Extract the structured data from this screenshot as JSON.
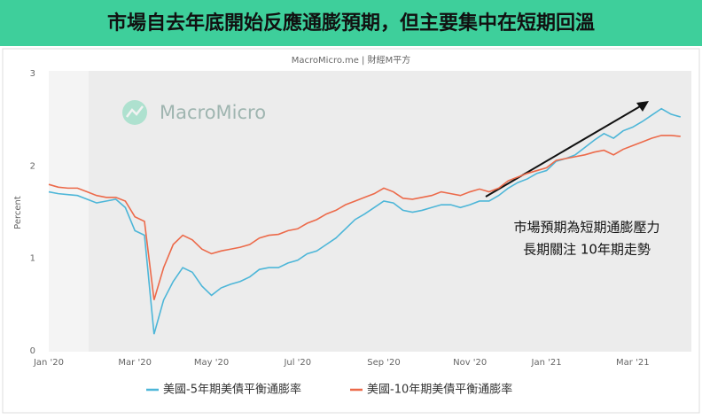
{
  "header": {
    "title": "市場自去年底開始反應通膨預期，但主要集中在短期回溫"
  },
  "chart_data": {
    "type": "line",
    "source": "MacroMicro.me | 財經M平方",
    "watermark": "MacroMicro",
    "y_label": "Percent",
    "annotations": [
      "市場預期為短期通膨壓力",
      "長期關注 10年期走勢"
    ],
    "categories": [
      "Jan '20",
      null,
      null,
      null,
      null,
      null,
      null,
      null,
      null,
      "Mar '20",
      null,
      null,
      null,
      null,
      null,
      null,
      null,
      "May '20",
      null,
      null,
      null,
      null,
      null,
      null,
      null,
      null,
      "Jul '20",
      null,
      null,
      null,
      null,
      null,
      null,
      null,
      null,
      "Sep '20",
      null,
      null,
      null,
      null,
      null,
      null,
      null,
      null,
      "Nov '20",
      null,
      null,
      null,
      null,
      null,
      null,
      null,
      "Jan '21",
      null,
      null,
      null,
      null,
      null,
      null,
      null,
      null,
      "Mar '21",
      null,
      null,
      null,
      null,
      null
    ],
    "series": [
      {
        "name": "美國-5年期美債平衡通膨率",
        "color": "#4db6d8",
        "values": [
          1.72,
          1.7,
          1.69,
          1.68,
          1.64,
          1.6,
          1.62,
          1.64,
          1.55,
          1.3,
          1.25,
          0.18,
          0.55,
          0.75,
          0.9,
          0.85,
          0.7,
          0.6,
          0.68,
          0.72,
          0.75,
          0.8,
          0.88,
          0.9,
          0.9,
          0.95,
          0.98,
          1.05,
          1.08,
          1.15,
          1.22,
          1.32,
          1.42,
          1.48,
          1.55,
          1.62,
          1.6,
          1.52,
          1.5,
          1.52,
          1.55,
          1.58,
          1.58,
          1.55,
          1.58,
          1.62,
          1.62,
          1.68,
          1.76,
          1.82,
          1.86,
          1.92,
          1.95,
          2.05,
          2.08,
          2.12,
          2.2,
          2.28,
          2.35,
          2.3,
          2.38,
          2.42,
          2.48,
          2.55,
          2.62,
          2.56,
          2.53
        ]
      },
      {
        "name": "美國-10年期美債平衡通膨率",
        "color": "#ec6a4a",
        "values": [
          1.8,
          1.77,
          1.76,
          1.76,
          1.72,
          1.68,
          1.66,
          1.66,
          1.62,
          1.45,
          1.4,
          0.55,
          0.9,
          1.15,
          1.25,
          1.2,
          1.1,
          1.05,
          1.08,
          1.1,
          1.12,
          1.15,
          1.22,
          1.25,
          1.26,
          1.3,
          1.32,
          1.38,
          1.42,
          1.48,
          1.52,
          1.58,
          1.62,
          1.66,
          1.7,
          1.76,
          1.72,
          1.65,
          1.64,
          1.66,
          1.68,
          1.72,
          1.7,
          1.68,
          1.72,
          1.75,
          1.72,
          1.76,
          1.84,
          1.88,
          1.92,
          1.95,
          1.98,
          2.06,
          2.08,
          2.1,
          2.12,
          2.15,
          2.17,
          2.12,
          2.18,
          2.22,
          2.26,
          2.3,
          2.33,
          2.33,
          2.32
        ]
      }
    ],
    "ylim": [
      0,
      3
    ],
    "yticks": [
      0,
      1,
      2,
      3
    ],
    "grid": false
  }
}
